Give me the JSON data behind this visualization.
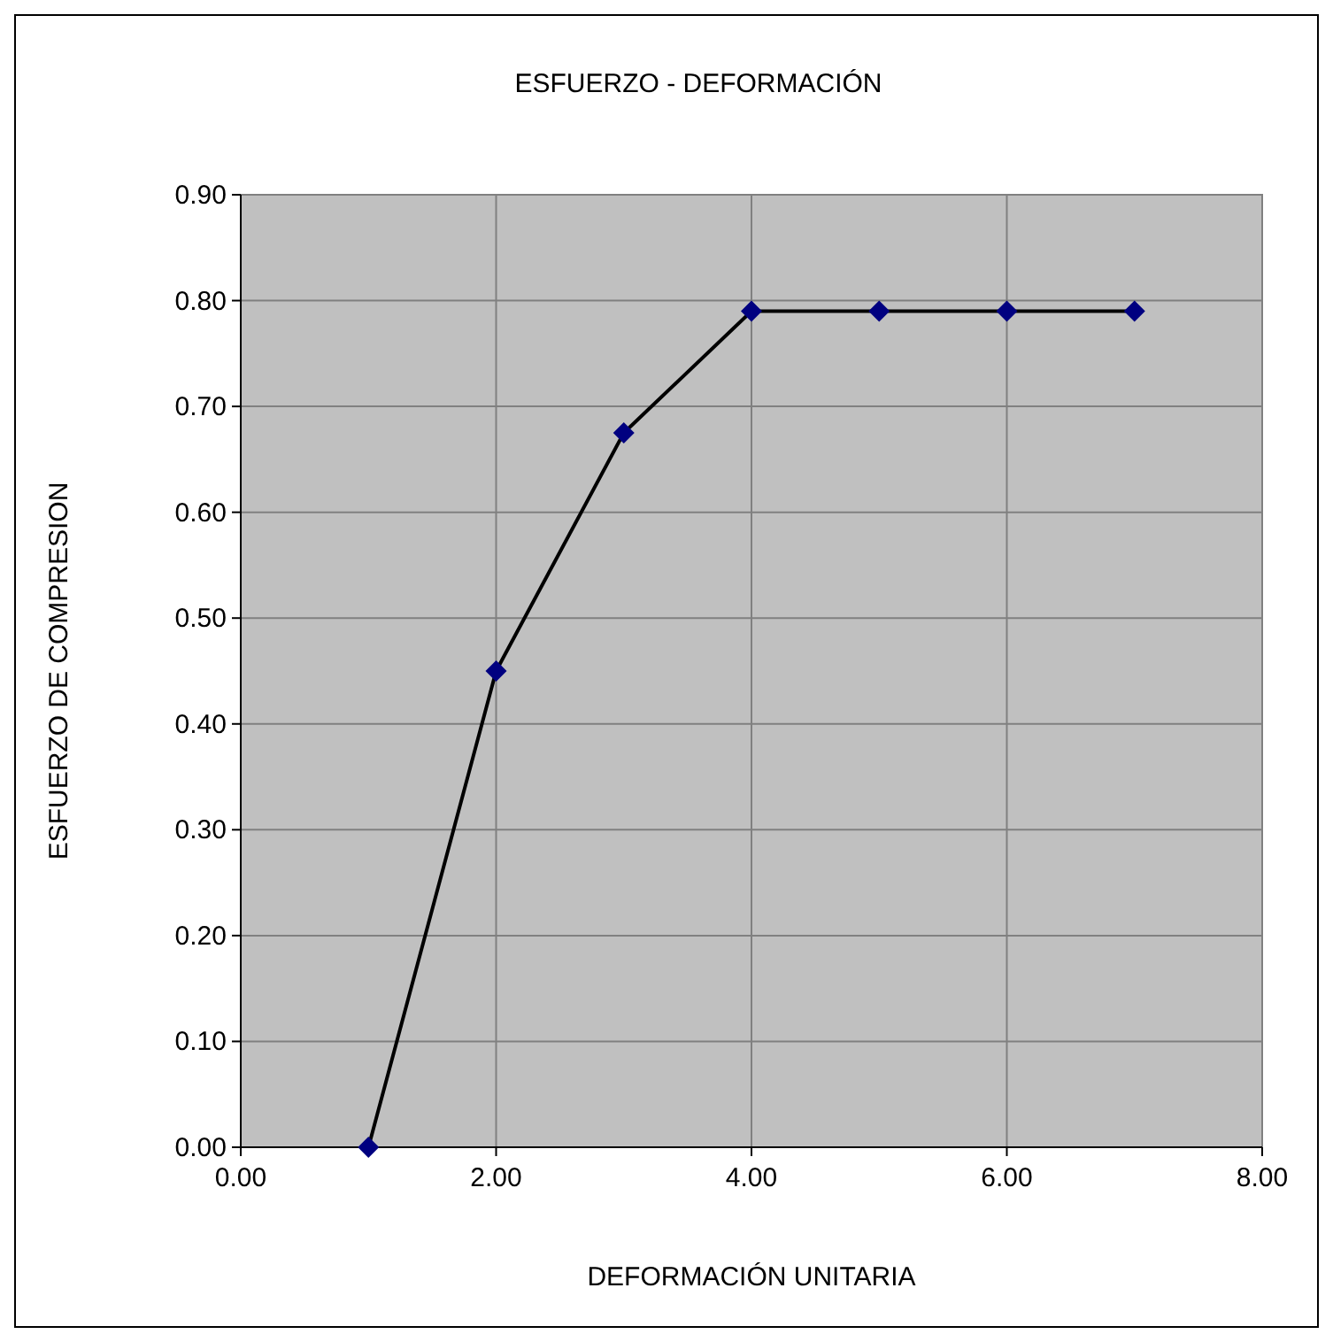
{
  "chart_data": {
    "type": "line",
    "title": "ESFUERZO  - DEFORMACIÓN",
    "xlabel": "DEFORMACIÓN  UNITARIA",
    "ylabel": "ESFUERZO  DE  COMPRESION",
    "x": [
      1,
      2,
      3,
      4,
      5,
      6,
      7
    ],
    "series": [
      {
        "color": "#000080",
        "values": [
          0,
          0.45,
          0.675,
          0.79,
          0.79,
          0.79,
          0.79
        ]
      }
    ],
    "xlim": [
      0,
      8
    ],
    "xticks": [
      {
        "value": 0,
        "label": "0.00"
      },
      {
        "value": 2,
        "label": "2.00"
      },
      {
        "value": 4,
        "label": "4.00"
      },
      {
        "value": 6,
        "label": "6.00"
      },
      {
        "value": 8,
        "label": "8.00"
      }
    ],
    "ylim": [
      0,
      0.9
    ],
    "yticks": [
      {
        "value": 0,
        "label": "0.00"
      },
      {
        "value": 0.1,
        "label": "0.10"
      },
      {
        "value": 0.2,
        "label": "0.20"
      },
      {
        "value": 0.3,
        "label": "0.30"
      },
      {
        "value": 0.4,
        "label": "0.40"
      },
      {
        "value": 0.5,
        "label": "0.50"
      },
      {
        "value": 0.6,
        "label": "0.60"
      },
      {
        "value": 0.7,
        "label": "0.70"
      },
      {
        "value": 0.8,
        "label": "0.80"
      },
      {
        "value": 0.9,
        "label": "0.90"
      }
    ],
    "grid": true,
    "marker": "diamond",
    "line_style": "solid"
  }
}
